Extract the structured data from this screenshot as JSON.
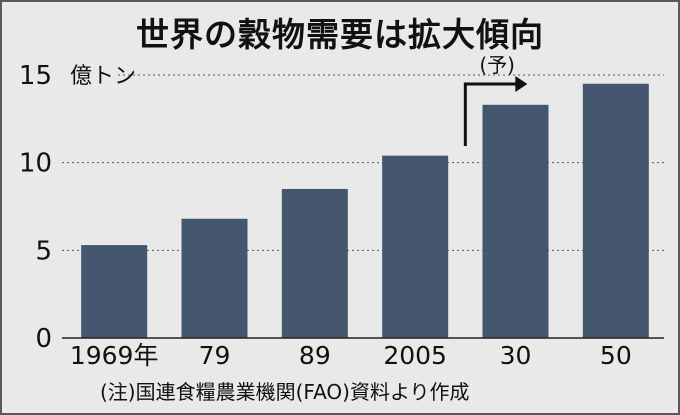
{
  "title": "世界の穀物需要は拡大傾向",
  "note": "(注)国連食糧農業機関(FAO)資料より作成",
  "chart_data": {
    "type": "bar",
    "title": "世界の穀物需要は拡大傾向",
    "unit": "億トン",
    "categories": [
      "1969年",
      "79",
      "89",
      "2005",
      "30",
      "50"
    ],
    "values": [
      5.3,
      6.8,
      8.5,
      10.4,
      13.3,
      14.5
    ],
    "yticks": [
      0,
      5,
      10,
      15
    ],
    "ylim": [
      0,
      15
    ],
    "grid": true,
    "forecast_label": "(予)",
    "forecast_start_index": 4,
    "bar_color": "#45576f",
    "grid_color": "#555555",
    "background_color": "#e9e9e9"
  }
}
